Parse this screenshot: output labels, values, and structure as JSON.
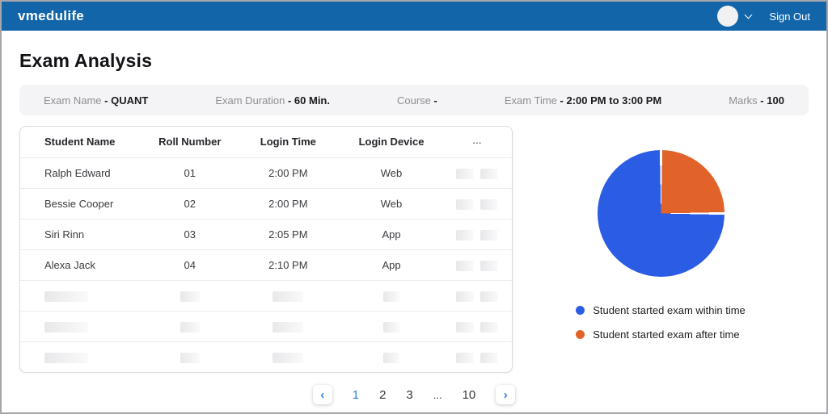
{
  "topbar": {
    "brand": "vmedulife",
    "sign_out": "Sign Out"
  },
  "page": {
    "title": "Exam Analysis"
  },
  "info_bar": {
    "separator": "-",
    "items": [
      {
        "label": "Exam Name",
        "value": "QUANT"
      },
      {
        "label": "Exam Duration",
        "value": "60 Min."
      },
      {
        "label": "Course",
        "value": ""
      },
      {
        "label": "Exam Time",
        "value": "2:00 PM to 3:00 PM"
      },
      {
        "label": "Marks",
        "value": "100"
      }
    ]
  },
  "table": {
    "headers": [
      "Student Name",
      "Roll Number",
      "Login Time",
      "Login Device",
      "..."
    ],
    "rows": [
      {
        "name": "Ralph Edward",
        "roll": "01",
        "login_time": "2:00 PM",
        "device": "Web"
      },
      {
        "name": "Bessie Cooper",
        "roll": "02",
        "login_time": "2:00 PM",
        "device": "Web"
      },
      {
        "name": "Siri Rinn",
        "roll": "03",
        "login_time": "2:05 PM",
        "device": "App"
      },
      {
        "name": "Alexa Jack",
        "roll": "04",
        "login_time": "2:10 PM",
        "device": "App"
      }
    ],
    "placeholder_row_count": 3
  },
  "pagination": {
    "prev": "‹",
    "next": "›",
    "pages": [
      "1",
      "2",
      "3",
      "...",
      "10"
    ],
    "active_page": "1"
  },
  "chart_data": {
    "type": "pie",
    "title": "",
    "series": [
      {
        "label": "Student started exam within time",
        "value": 75,
        "color": "#2b5ce4"
      },
      {
        "label": "Student started exam after time",
        "value": 25,
        "color": "#e2632a"
      }
    ],
    "units": "percent",
    "legend_position": "bottom-left",
    "slice_order_clockwise_from_top": [
      "Student started exam after time",
      "Student started exam within time"
    ]
  },
  "colors": {
    "topbar_blue": "#1365a9",
    "accent_blue": "#2979e8"
  }
}
